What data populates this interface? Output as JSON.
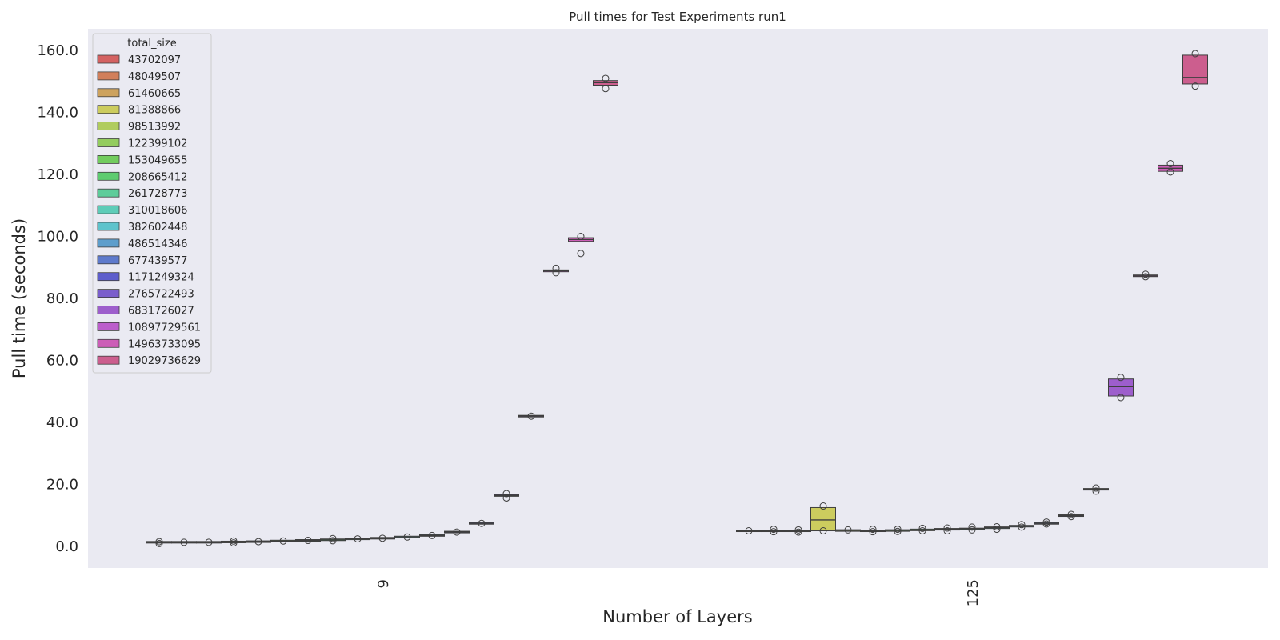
{
  "chart_data": {
    "type": "box",
    "title": "Pull times for Test Experiments run1",
    "xlabel": "Number of Layers",
    "ylabel": "Pull time (seconds)",
    "ylim": [
      -7,
      167
    ],
    "y_ticks": [
      "0.0",
      "20.0",
      "40.0",
      "60.0",
      "80.0",
      "100.0",
      "120.0",
      "140.0",
      "160.0"
    ],
    "grid": false,
    "categories": [
      "9",
      "125"
    ],
    "legend": {
      "title": "total_size",
      "position": "top-left"
    },
    "series": [
      {
        "name": "43702097",
        "color": "#d46262",
        "boxes": [
          {
            "category": "9",
            "q1": 1.2,
            "median": 1.3,
            "q3": 1.4,
            "outliers": [
              0.9,
              1.5
            ]
          }
        ]
      },
      {
        "name": "48049507",
        "color": "#d17f5b",
        "boxes": [
          {
            "category": "9",
            "q1": 1.2,
            "median": 1.3,
            "q3": 1.4,
            "outliers": [
              1.3
            ]
          }
        ]
      },
      {
        "name": "61460665",
        "color": "#cda25e",
        "boxes": [
          {
            "category": "9",
            "q1": 1.2,
            "median": 1.3,
            "q3": 1.4,
            "outliers": [
              1.3
            ]
          }
        ]
      },
      {
        "name": "81388866",
        "color": "#cccc5e",
        "boxes": [
          {
            "category": "9",
            "q1": 1.3,
            "median": 1.4,
            "q3": 1.5,
            "outliers": [
              1.1,
              1.7
            ]
          },
          {
            "category": "125",
            "q1": 5.0,
            "median": 8.5,
            "q3": 12.5,
            "outliers": [
              5.0,
              13.0
            ]
          }
        ]
      },
      {
        "name": "98513992",
        "color": "#b0cc5e",
        "boxes": [
          {
            "category": "9",
            "q1": 1.4,
            "median": 1.5,
            "q3": 1.6,
            "outliers": [
              1.5
            ]
          }
        ]
      },
      {
        "name": "122399102",
        "color": "#93cc5e",
        "boxes": [
          {
            "category": "9",
            "q1": 1.6,
            "median": 1.7,
            "q3": 1.8,
            "outliers": [
              1.7
            ]
          }
        ]
      },
      {
        "name": "153049655",
        "color": "#72cc5e",
        "boxes": [
          {
            "category": "9",
            "q1": 1.8,
            "median": 1.9,
            "q3": 2.0,
            "outliers": [
              1.9
            ]
          }
        ]
      },
      {
        "name": "208665412",
        "color": "#5ecc70",
        "boxes": [
          {
            "category": "9",
            "q1": 2.0,
            "median": 2.1,
            "q3": 2.2,
            "outliers": [
              1.8,
              2.5
            ]
          }
        ]
      },
      {
        "name": "261728773",
        "color": "#5ecc9a",
        "boxes": [
          {
            "category": "9",
            "q1": 2.3,
            "median": 2.4,
            "q3": 2.5,
            "outliers": [
              2.4
            ]
          }
        ]
      },
      {
        "name": "310018606",
        "color": "#5eccb8",
        "boxes": [
          {
            "category": "9",
            "q1": 2.5,
            "median": 2.6,
            "q3": 2.7,
            "outliers": [
              2.6
            ]
          }
        ]
      },
      {
        "name": "382602448",
        "color": "#5ec3cc",
        "boxes": [
          {
            "category": "9",
            "q1": 2.9,
            "median": 3.0,
            "q3": 3.1,
            "outliers": [
              3.0
            ]
          }
        ]
      },
      {
        "name": "486514346",
        "color": "#5e9ecc",
        "boxes": [
          {
            "category": "9",
            "q1": 3.4,
            "median": 3.5,
            "q3": 3.6,
            "outliers": [
              3.5
            ]
          }
        ]
      },
      {
        "name": "677439577",
        "color": "#5e7acc",
        "boxes": [
          {
            "category": "9",
            "q1": 4.5,
            "median": 4.6,
            "q3": 4.7,
            "outliers": [
              4.6
            ]
          }
        ]
      },
      {
        "name": "1171249324",
        "color": "#5e5ecc",
        "boxes": [
          {
            "category": "9",
            "q1": 7.3,
            "median": 7.4,
            "q3": 7.5,
            "outliers": [
              7.4
            ]
          }
        ]
      },
      {
        "name": "2765722493",
        "color": "#7a5ecc",
        "boxes": [
          {
            "category": "9",
            "q1": 16.2,
            "median": 16.4,
            "q3": 16.6,
            "outliers": [
              15.6,
              17.0
            ]
          }
        ]
      },
      {
        "name": "6831726027",
        "color": "#9d5ecc",
        "boxes": [
          {
            "category": "9",
            "q1": 41.8,
            "median": 42.0,
            "q3": 42.2,
            "outliers": [
              42.0
            ]
          },
          {
            "category": "125",
            "q1": 48.5,
            "median": 51.5,
            "q3": 54.0,
            "outliers": [
              48.0,
              54.5
            ]
          }
        ]
      },
      {
        "name": "10897729561",
        "color": "#bc5ecc",
        "boxes": [
          {
            "category": "9",
            "q1": 88.6,
            "median": 88.9,
            "q3": 89.2,
            "outliers": [
              88.3,
              89.7
            ]
          }
        ]
      },
      {
        "name": "14963733095",
        "color": "#cc5eb7",
        "boxes": [
          {
            "category": "9",
            "q1": 98.4,
            "median": 99.0,
            "q3": 99.6,
            "outliers": [
              94.5,
              100.0
            ]
          }
        ]
      },
      {
        "name": "19029736629",
        "color": "#cc5e8e",
        "boxes": [
          {
            "category": "9",
            "q1": 148.8,
            "median": 149.6,
            "q3": 150.3,
            "outliers": [
              147.7,
              151.0
            ]
          },
          {
            "category": "125",
            "q1": 149.2,
            "median": 151.3,
            "q3": 158.5,
            "outliers": [
              148.5,
              159.0
            ]
          }
        ]
      }
    ],
    "box_estimates_125": [
      {
        "q1": 4.9,
        "median": 5.0,
        "q3": 5.1,
        "outliers": [
          5.0
        ]
      },
      {
        "q1": 4.9,
        "median": 5.0,
        "q3": 5.1,
        "outliers": [
          4.7,
          5.5
        ]
      },
      {
        "q1": 4.9,
        "median": 5.0,
        "q3": 5.1,
        "outliers": [
          4.6,
          5.3
        ]
      },
      {
        "q1": 5.0,
        "median": 8.5,
        "q3": 12.5,
        "outliers": [
          5.0,
          13.0
        ]
      },
      {
        "q1": 5.0,
        "median": 5.1,
        "q3": 5.2,
        "outliers": [
          5.3
        ]
      },
      {
        "q1": 4.9,
        "median": 5.0,
        "q3": 5.1,
        "outliers": [
          4.7,
          5.5
        ]
      },
      {
        "q1": 5.0,
        "median": 5.1,
        "q3": 5.2,
        "outliers": [
          4.8,
          5.5
        ]
      },
      {
        "q1": 5.2,
        "median": 5.3,
        "q3": 5.4,
        "outliers": [
          5.0,
          5.8
        ]
      },
      {
        "q1": 5.4,
        "median": 5.5,
        "q3": 5.6,
        "outliers": [
          5.0,
          5.9
        ]
      },
      {
        "q1": 5.5,
        "median": 5.6,
        "q3": 5.7,
        "outliers": [
          5.3,
          6.2
        ]
      },
      {
        "q1": 5.9,
        "median": 6.0,
        "q3": 6.1,
        "outliers": [
          5.5,
          6.3
        ]
      },
      {
        "q1": 6.4,
        "median": 6.5,
        "q3": 6.6,
        "outliers": [
          6.2,
          7.0
        ]
      },
      {
        "q1": 7.3,
        "median": 7.4,
        "q3": 7.5,
        "outliers": [
          7.2,
          7.8
        ]
      },
      {
        "q1": 9.8,
        "median": 9.9,
        "q3": 10.0,
        "outliers": [
          9.6,
          10.3
        ]
      },
      {
        "q1": 18.2,
        "median": 18.4,
        "q3": 18.6,
        "outliers": [
          17.8,
          18.8
        ]
      },
      {
        "q1": 48.5,
        "median": 51.5,
        "q3": 54.0,
        "outliers": [
          48.0,
          54.5
        ]
      },
      {
        "q1": 87.1,
        "median": 87.3,
        "q3": 87.5,
        "outliers": [
          87.0,
          87.8
        ]
      },
      {
        "q1": 121.0,
        "median": 122.0,
        "q3": 123.0,
        "outliers": [
          120.8,
          123.5
        ]
      },
      {
        "q1": 149.2,
        "median": 151.3,
        "q3": 158.5,
        "outliers": [
          148.5,
          159.0
        ]
      }
    ]
  }
}
